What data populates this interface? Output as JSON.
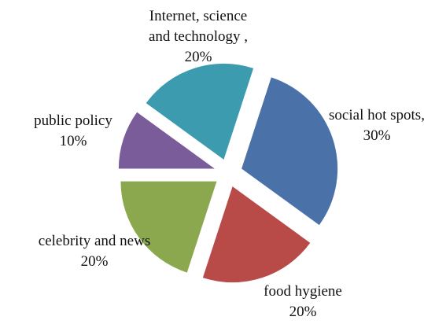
{
  "chart_data": {
    "type": "pie",
    "categories": [
      "social hot spots,",
      "food hygiene",
      "celebrity and news",
      "public policy",
      "Internet, science and technology ,"
    ],
    "values": [
      30,
      20,
      20,
      10,
      20
    ],
    "value_labels": [
      "30%",
      "20%",
      "20%",
      "10%",
      "20%"
    ],
    "colors": [
      "#4a72a8",
      "#b84a48",
      "#8ca84e",
      "#7a5c9a",
      "#3d9bb0"
    ],
    "exploded": true
  }
}
